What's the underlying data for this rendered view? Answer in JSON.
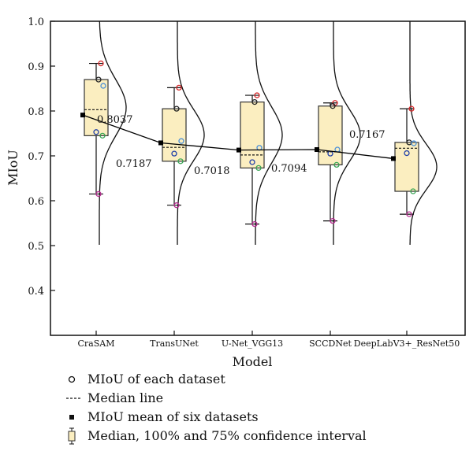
{
  "chart_data": {
    "type": "box",
    "xlabel": "Model",
    "ylabel": "MIoU",
    "ylim": [
      0.3,
      1.0
    ],
    "yticks": [
      0.4,
      0.5,
      0.6,
      0.7,
      0.8,
      0.9,
      1.0
    ],
    "ytick_labels": [
      "0.4",
      "0.5",
      "0.6",
      "0.7",
      "0.8",
      "0.9",
      "1.0"
    ],
    "grid": false,
    "legend_position": "bottom",
    "categories": [
      "CraSAM",
      "TransUNet",
      "U-Net_VGG13",
      "SCCDNet",
      "DeepLabV3+_ResNet50"
    ],
    "boxes": [
      {
        "whisker_low": 0.615,
        "q1": 0.745,
        "median": 0.803,
        "q3": 0.87,
        "whisker_high": 0.906
      },
      {
        "whisker_low": 0.59,
        "q1": 0.688,
        "median": 0.719,
        "q3": 0.805,
        "whisker_high": 0.852
      },
      {
        "whisker_low": 0.548,
        "q1": 0.673,
        "median": 0.702,
        "q3": 0.82,
        "whisker_high": 0.835
      },
      {
        "whisker_low": 0.555,
        "q1": 0.68,
        "median": 0.709,
        "q3": 0.811,
        "whisker_high": 0.818
      },
      {
        "whisker_low": 0.57,
        "q1": 0.621,
        "median": 0.717,
        "q3": 0.73,
        "whisker_high": 0.805
      }
    ],
    "dataset_points": [
      [
        0.906,
        0.87,
        0.856,
        0.753,
        0.745,
        0.615
      ],
      [
        0.852,
        0.805,
        0.733,
        0.705,
        0.688,
        0.59
      ],
      [
        0.835,
        0.82,
        0.718,
        0.686,
        0.673,
        0.548
      ],
      [
        0.818,
        0.811,
        0.714,
        0.705,
        0.68,
        0.555
      ],
      [
        0.805,
        0.73,
        0.728,
        0.706,
        0.621,
        0.57
      ]
    ],
    "dataset_colors": [
      "#d62728",
      "#222222",
      "#4a8fd8",
      "#1f3fa8",
      "#3aa655",
      "#b52a8f"
    ],
    "mean_series": [
      0.791,
      0.729,
      0.713,
      0.714,
      0.694
    ],
    "annotations": [
      "0.8037",
      "0.7187",
      "0.7018",
      "0.7094",
      "0.7167"
    ],
    "colors": {
      "box_fill": "#fbeec0",
      "box_stroke": "#333333",
      "mean_line": "#000000"
    }
  },
  "legend": {
    "items": [
      {
        "label": "MIoU of each dataset"
      },
      {
        "label": "Median line"
      },
      {
        "label": "MIoU mean of six datasets"
      },
      {
        "label": "Median, 100% and 75% confidence interval"
      }
    ]
  }
}
